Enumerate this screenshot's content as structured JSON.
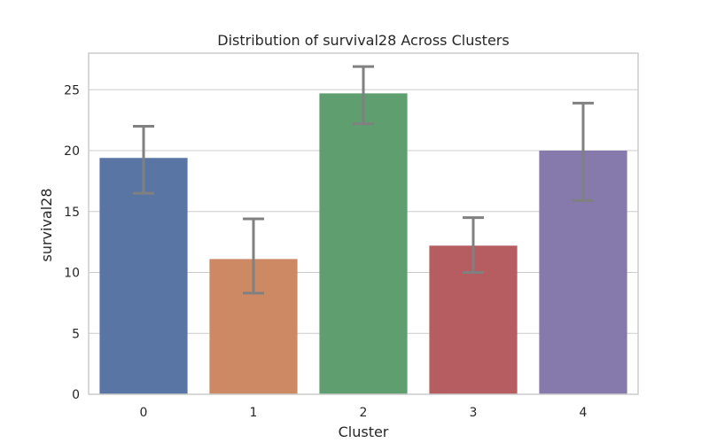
{
  "chart_data": {
    "type": "bar",
    "title": "Distribution of survival28 Across Clusters",
    "xlabel": "Cluster",
    "ylabel": "survival28",
    "categories": [
      "0",
      "1",
      "2",
      "3",
      "4"
    ],
    "values": [
      19.4,
      11.1,
      24.7,
      12.2,
      20.0
    ],
    "error_low": [
      16.5,
      8.3,
      22.2,
      10.0,
      15.9
    ],
    "error_high": [
      22.0,
      14.4,
      26.9,
      14.5,
      23.9
    ],
    "ylim": [
      0,
      28
    ],
    "yticks": [
      0,
      5,
      10,
      15,
      20,
      25
    ],
    "grid": true,
    "colors": [
      "#5975a4",
      "#cc8963",
      "#5f9e6e",
      "#b55d60",
      "#857aab"
    ],
    "error_color": "#808080",
    "grid_color": "#cccccc",
    "spine_color": "#cccccc"
  }
}
